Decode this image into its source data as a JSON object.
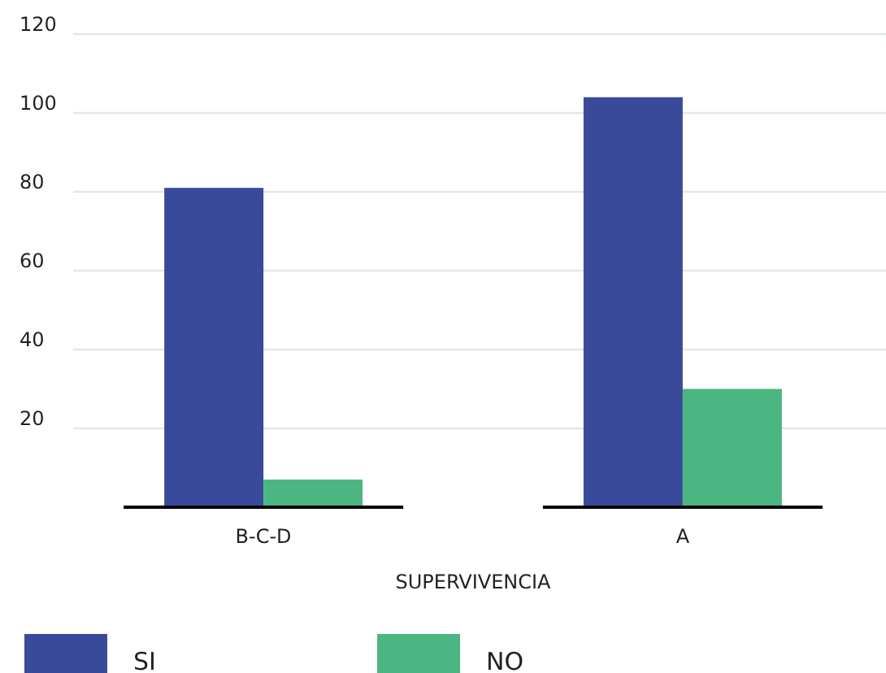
{
  "chart_data": {
    "type": "bar",
    "xlabel": "SUPERVIVENCIA",
    "categories": [
      "B-C-D",
      "A"
    ],
    "series": [
      {
        "name": "SI",
        "color": "#3a4a9b",
        "values": [
          81,
          104
        ]
      },
      {
        "name": "NO",
        "color": "#4bb682",
        "values": [
          7,
          30
        ]
      }
    ],
    "ylim": [
      0,
      120
    ],
    "yticks": [
      20,
      40,
      60,
      80,
      100,
      120
    ],
    "grid": "y",
    "legend": "bottom"
  }
}
